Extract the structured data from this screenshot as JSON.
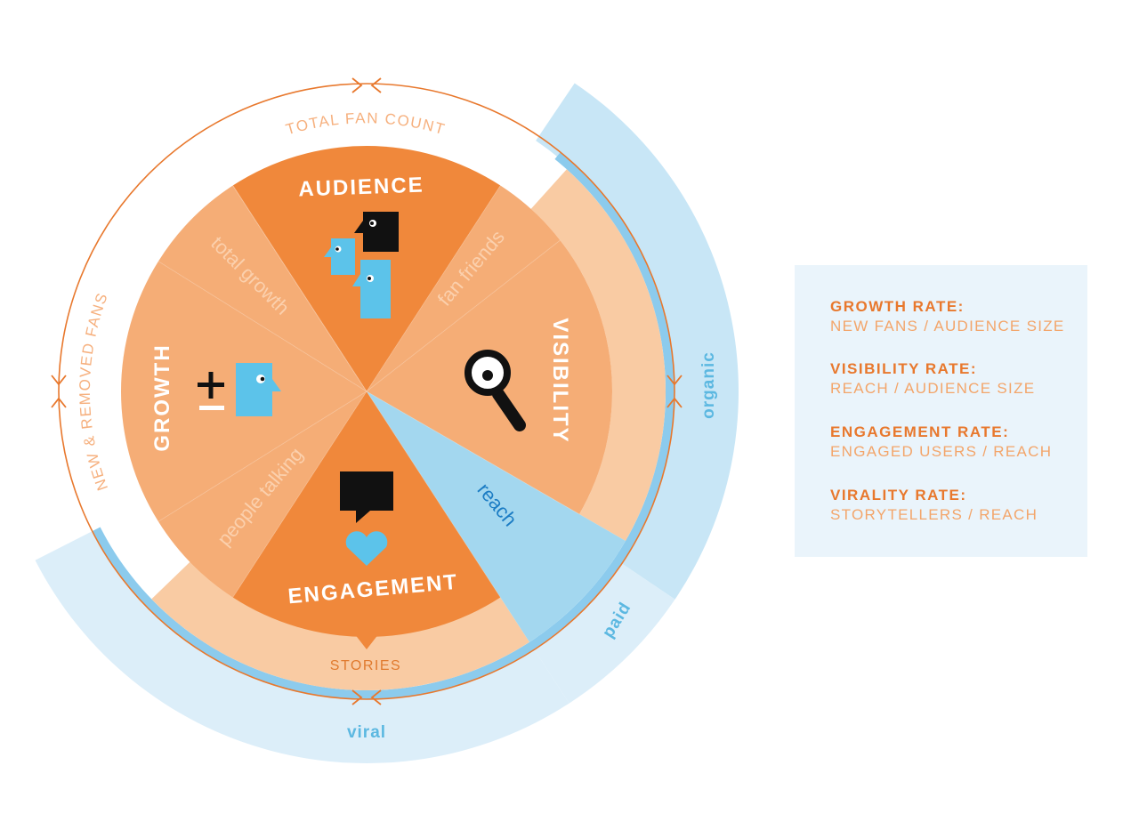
{
  "diagram": {
    "segments": {
      "audience": "AUDIENCE",
      "growth": "GROWTH",
      "engagement": "ENGAGEMENT",
      "visibility": "VISIBILITY"
    },
    "sublabels": {
      "total_growth": "total growth",
      "fan_friends": "fan friends",
      "people_talking": "people talking",
      "reach": "reach"
    },
    "outer_labels": {
      "total_fan_count": "TOTAL FAN COUNT",
      "new_removed_fans": "NEW & REMOVED FANS",
      "stories": "STORIES"
    },
    "distribution": {
      "organic": "organic",
      "paid": "paid",
      "viral": "viral"
    },
    "icons": [
      "heads-icon",
      "plus-minus-icon",
      "magnifier-icon",
      "speech-bubble-icon",
      "heart-icon"
    ],
    "colors": {
      "core_orange": "#f0883b",
      "mid_orange": "#f5ad76",
      "light_orange": "#f9cba3",
      "blue": "#5cb8e1",
      "light_blue": "#c8e6f6"
    }
  },
  "legend": {
    "rates": [
      {
        "title": "GROWTH RATE:",
        "formula": "NEW FANS / AUDIENCE SIZE"
      },
      {
        "title": "VISIBILITY RATE:",
        "formula": "REACH / AUDIENCE SIZE"
      },
      {
        "title": "ENGAGEMENT RATE:",
        "formula": "ENGAGED USERS / REACH"
      },
      {
        "title": "VIRALITY RATE:",
        "formula": "STORYTELLERS / REACH"
      }
    ]
  }
}
